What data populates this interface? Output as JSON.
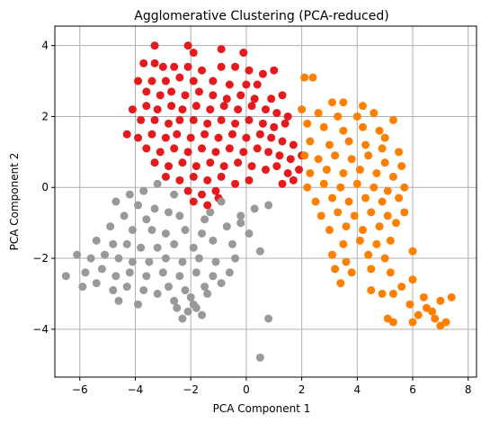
{
  "chart_data": {
    "type": "scatter",
    "title": "Agglomerative Clustering (PCA-reduced)",
    "xlabel": "PCA Component 1",
    "ylabel": "PCA Component 2",
    "xlim": [
      -6.9,
      8.3
    ],
    "ylim": [
      -5.35,
      4.55
    ],
    "xticks": [
      -6,
      -4,
      -2,
      0,
      2,
      4,
      6,
      8
    ],
    "yticks": [
      -4,
      -2,
      0,
      2,
      4
    ],
    "grid": true,
    "legend": "none",
    "series": [
      {
        "color": "#e41a1c",
        "points": [
          [
            -3.3,
            4.0
          ],
          [
            -2.1,
            4.0
          ],
          [
            -0.9,
            3.9
          ],
          [
            -1.9,
            3.8
          ],
          [
            -0.1,
            3.8
          ],
          [
            -3.7,
            3.5
          ],
          [
            -3.3,
            3.5
          ],
          [
            -3.0,
            3.4
          ],
          [
            -2.6,
            3.4
          ],
          [
            -2.1,
            3.4
          ],
          [
            -1.6,
            3.3
          ],
          [
            -0.9,
            3.4
          ],
          [
            -0.4,
            3.4
          ],
          [
            0.1,
            3.3
          ],
          [
            0.6,
            3.2
          ],
          [
            1.0,
            3.3
          ],
          [
            -3.9,
            3.0
          ],
          [
            -3.4,
            3.0
          ],
          [
            -2.9,
            3.0
          ],
          [
            -2.4,
            3.1
          ],
          [
            -1.9,
            3.0
          ],
          [
            -1.2,
            3.0
          ],
          [
            -0.6,
            2.9
          ],
          [
            0.0,
            2.9
          ],
          [
            0.4,
            2.9
          ],
          [
            -3.6,
            2.7
          ],
          [
            -3.1,
            2.6
          ],
          [
            -2.7,
            2.7
          ],
          [
            -2.2,
            2.6
          ],
          [
            -1.7,
            2.7
          ],
          [
            -1.2,
            2.6
          ],
          [
            -0.7,
            2.5
          ],
          [
            -0.2,
            2.6
          ],
          [
            0.3,
            2.5
          ],
          [
            0.9,
            2.5
          ],
          [
            1.3,
            2.6
          ],
          [
            -4.1,
            2.2
          ],
          [
            -3.6,
            2.3
          ],
          [
            -3.2,
            2.2
          ],
          [
            -2.7,
            2.3
          ],
          [
            -2.3,
            2.2
          ],
          [
            -1.8,
            2.3
          ],
          [
            -1.3,
            2.2
          ],
          [
            -0.8,
            2.3
          ],
          [
            -0.3,
            2.2
          ],
          [
            0.2,
            2.3
          ],
          [
            0.7,
            2.2
          ],
          [
            1.1,
            2.1
          ],
          [
            1.5,
            2.0
          ],
          [
            -3.8,
            1.9
          ],
          [
            -3.3,
            1.9
          ],
          [
            -2.8,
            1.8
          ],
          [
            -2.4,
            1.9
          ],
          [
            -1.9,
            1.9
          ],
          [
            -1.4,
            1.8
          ],
          [
            -0.9,
            1.9
          ],
          [
            -0.4,
            1.8
          ],
          [
            0.1,
            1.9
          ],
          [
            0.6,
            1.8
          ],
          [
            1.0,
            1.7
          ],
          [
            1.4,
            1.8
          ],
          [
            -4.3,
            1.5
          ],
          [
            -3.9,
            1.4
          ],
          [
            -3.4,
            1.5
          ],
          [
            -2.9,
            1.4
          ],
          [
            -2.5,
            1.5
          ],
          [
            -2.0,
            1.4
          ],
          [
            -1.5,
            1.5
          ],
          [
            -1.0,
            1.4
          ],
          [
            -0.5,
            1.5
          ],
          [
            0.0,
            1.4
          ],
          [
            0.5,
            1.5
          ],
          [
            0.9,
            1.4
          ],
          [
            1.3,
            1.3
          ],
          [
            1.7,
            1.2
          ],
          [
            -3.6,
            1.1
          ],
          [
            -3.1,
            1.0
          ],
          [
            -2.6,
            1.1
          ],
          [
            -2.1,
            1.0
          ],
          [
            -1.6,
            1.1
          ],
          [
            -1.1,
            1.0
          ],
          [
            -0.6,
            1.1
          ],
          [
            -0.1,
            1.0
          ],
          [
            0.4,
            1.1
          ],
          [
            0.8,
            1.0
          ],
          [
            1.2,
            0.9
          ],
          [
            1.6,
            0.8
          ],
          [
            2.0,
            0.9
          ],
          [
            -3.3,
            0.7
          ],
          [
            -2.8,
            0.6
          ],
          [
            -2.3,
            0.7
          ],
          [
            -1.8,
            0.6
          ],
          [
            -1.3,
            0.7
          ],
          [
            -0.8,
            0.6
          ],
          [
            -0.3,
            0.7
          ],
          [
            0.2,
            0.6
          ],
          [
            0.7,
            0.5
          ],
          [
            1.1,
            0.6
          ],
          [
            1.5,
            0.4
          ],
          [
            1.9,
            0.5
          ],
          [
            -2.9,
            0.3
          ],
          [
            -2.4,
            0.2
          ],
          [
            -1.9,
            0.3
          ],
          [
            -1.4,
            0.2
          ],
          [
            -0.9,
            0.3
          ],
          [
            -0.4,
            0.1
          ],
          [
            0.1,
            0.2
          ],
          [
            1.3,
            0.1
          ],
          [
            1.7,
            0.2
          ],
          [
            -2.1,
            -0.1
          ],
          [
            -1.6,
            -0.2
          ],
          [
            -1.1,
            -0.1
          ],
          [
            -1.9,
            -0.4
          ],
          [
            -1.4,
            -0.5
          ],
          [
            -1.0,
            -0.3
          ]
        ]
      },
      {
        "color": "#ff7f00",
        "points": [
          [
            2.1,
            3.1
          ],
          [
            2.4,
            3.1
          ],
          [
            3.1,
            2.4
          ],
          [
            3.5,
            2.4
          ],
          [
            4.2,
            2.3
          ],
          [
            2.0,
            2.2
          ],
          [
            2.6,
            2.1
          ],
          [
            3.3,
            2.0
          ],
          [
            4.0,
            2.0
          ],
          [
            4.6,
            2.1
          ],
          [
            5.3,
            1.9
          ],
          [
            2.2,
            1.8
          ],
          [
            2.8,
            1.7
          ],
          [
            3.5,
            1.6
          ],
          [
            4.2,
            1.7
          ],
          [
            4.8,
            1.6
          ],
          [
            5.0,
            1.4
          ],
          [
            2.3,
            1.3
          ],
          [
            3.0,
            1.2
          ],
          [
            3.7,
            1.3
          ],
          [
            4.3,
            1.2
          ],
          [
            4.9,
            1.1
          ],
          [
            5.5,
            1.0
          ],
          [
            2.1,
            0.9
          ],
          [
            2.6,
            0.8
          ],
          [
            3.2,
            0.9
          ],
          [
            3.8,
            0.8
          ],
          [
            4.4,
            0.9
          ],
          [
            5.0,
            0.7
          ],
          [
            5.6,
            0.6
          ],
          [
            2.3,
            0.4
          ],
          [
            2.9,
            0.5
          ],
          [
            3.5,
            0.4
          ],
          [
            4.1,
            0.5
          ],
          [
            4.7,
            0.4
          ],
          [
            5.3,
            0.3
          ],
          [
            2.2,
            0.0
          ],
          [
            2.8,
            0.1
          ],
          [
            3.4,
            0.0
          ],
          [
            4.0,
            0.1
          ],
          [
            4.6,
            0.0
          ],
          [
            5.1,
            -0.1
          ],
          [
            5.7,
            0.0
          ],
          [
            2.5,
            -0.4
          ],
          [
            3.1,
            -0.3
          ],
          [
            3.7,
            -0.4
          ],
          [
            4.3,
            -0.3
          ],
          [
            4.9,
            -0.4
          ],
          [
            5.5,
            -0.3
          ],
          [
            2.7,
            -0.8
          ],
          [
            3.3,
            -0.7
          ],
          [
            3.9,
            -0.8
          ],
          [
            4.5,
            -0.7
          ],
          [
            5.1,
            -0.8
          ],
          [
            5.7,
            -0.7
          ],
          [
            3.0,
            -1.2
          ],
          [
            3.6,
            -1.1
          ],
          [
            4.2,
            -1.2
          ],
          [
            4.8,
            -1.1
          ],
          [
            5.4,
            -1.0
          ],
          [
            3.5,
            -1.6
          ],
          [
            4.1,
            -1.5
          ],
          [
            4.7,
            -1.6
          ],
          [
            5.2,
            -1.5
          ],
          [
            3.1,
            -1.9
          ],
          [
            3.6,
            -2.1
          ],
          [
            4.4,
            -1.9
          ],
          [
            5.0,
            -2.0
          ],
          [
            6.0,
            -1.8
          ],
          [
            3.2,
            -2.3
          ],
          [
            3.8,
            -2.4
          ],
          [
            4.5,
            -2.3
          ],
          [
            5.2,
            -2.4
          ],
          [
            3.4,
            -2.7
          ],
          [
            5.6,
            -2.8
          ],
          [
            6.0,
            -2.6
          ],
          [
            4.5,
            -2.9
          ],
          [
            4.9,
            -3.0
          ],
          [
            5.3,
            -3.0
          ],
          [
            6.4,
            -3.1
          ],
          [
            6.5,
            -3.4
          ],
          [
            7.0,
            -3.2
          ],
          [
            7.4,
            -3.1
          ],
          [
            5.9,
            -3.3
          ],
          [
            6.7,
            -3.5
          ],
          [
            6.2,
            -3.6
          ],
          [
            6.8,
            -3.7
          ],
          [
            5.1,
            -3.7
          ],
          [
            5.3,
            -3.8
          ],
          [
            6.0,
            -3.8
          ],
          [
            7.2,
            -3.8
          ],
          [
            7.0,
            -3.9
          ]
        ]
      },
      {
        "color": "#999999",
        "points": [
          [
            -3.2,
            0.1
          ],
          [
            -3.7,
            -0.1
          ],
          [
            -4.2,
            -0.2
          ],
          [
            -2.6,
            -0.2
          ],
          [
            -4.7,
            -0.4
          ],
          [
            -3.9,
            -0.5
          ],
          [
            -3.3,
            -0.6
          ],
          [
            -2.8,
            -0.7
          ],
          [
            -4.4,
            -0.8
          ],
          [
            -3.6,
            -0.9
          ],
          [
            -2.4,
            -0.8
          ],
          [
            -1.5,
            -0.9
          ],
          [
            -4.9,
            -1.1
          ],
          [
            -4.1,
            -1.2
          ],
          [
            -3.4,
            -1.2
          ],
          [
            -2.9,
            -1.3
          ],
          [
            -2.2,
            -1.2
          ],
          [
            -1.6,
            -1.3
          ],
          [
            -0.7,
            -1.1
          ],
          [
            -0.2,
            -0.8
          ],
          [
            0.3,
            -0.6
          ],
          [
            0.8,
            -0.5
          ],
          [
            -5.4,
            -1.5
          ],
          [
            -4.8,
            -1.6
          ],
          [
            -4.3,
            -1.6
          ],
          [
            -3.8,
            -1.7
          ],
          [
            -3.2,
            -1.7
          ],
          [
            -2.6,
            -1.6
          ],
          [
            -1.9,
            -1.7
          ],
          [
            -1.2,
            -1.5
          ],
          [
            -0.5,
            -1.6
          ],
          [
            0.1,
            -1.3
          ],
          [
            -6.1,
            -1.9
          ],
          [
            -5.6,
            -2.0
          ],
          [
            -5.1,
            -1.9
          ],
          [
            -4.6,
            -2.0
          ],
          [
            -4.1,
            -2.1
          ],
          [
            -3.5,
            -2.1
          ],
          [
            -2.9,
            -2.0
          ],
          [
            -2.3,
            -2.1
          ],
          [
            -1.7,
            -2.0
          ],
          [
            -1.1,
            -2.1
          ],
          [
            -0.4,
            -2.0
          ],
          [
            0.5,
            -1.8
          ],
          [
            -6.5,
            -2.5
          ],
          [
            -5.8,
            -2.4
          ],
          [
            -5.2,
            -2.3
          ],
          [
            -4.7,
            -2.5
          ],
          [
            -4.2,
            -2.4
          ],
          [
            -3.6,
            -2.5
          ],
          [
            -3.0,
            -2.4
          ],
          [
            -2.4,
            -2.5
          ],
          [
            -1.8,
            -2.4
          ],
          [
            -1.2,
            -2.5
          ],
          [
            -0.6,
            -2.4
          ],
          [
            -5.9,
            -2.8
          ],
          [
            -5.4,
            -2.7
          ],
          [
            -4.8,
            -2.9
          ],
          [
            -4.3,
            -2.8
          ],
          [
            -3.7,
            -2.9
          ],
          [
            -2.8,
            -2.8
          ],
          [
            -2.2,
            -2.9
          ],
          [
            -1.5,
            -2.8
          ],
          [
            -0.9,
            -2.7
          ],
          [
            -4.6,
            -3.2
          ],
          [
            -3.9,
            -3.3
          ],
          [
            -3.2,
            -3.0
          ],
          [
            -2.6,
            -3.2
          ],
          [
            -2.0,
            -3.1
          ],
          [
            -1.4,
            -3.0
          ],
          [
            -2.5,
            -3.4
          ],
          [
            -2.1,
            -3.5
          ],
          [
            -1.8,
            -3.4
          ],
          [
            -1.6,
            -3.6
          ],
          [
            -2.3,
            -3.7
          ],
          [
            -1.9,
            -3.3
          ],
          [
            -0.2,
            -1.0
          ],
          [
            -1.3,
            -0.7
          ],
          [
            -0.9,
            -0.4
          ],
          [
            0.8,
            -3.7
          ],
          [
            0.5,
            -4.8
          ]
        ]
      }
    ]
  }
}
